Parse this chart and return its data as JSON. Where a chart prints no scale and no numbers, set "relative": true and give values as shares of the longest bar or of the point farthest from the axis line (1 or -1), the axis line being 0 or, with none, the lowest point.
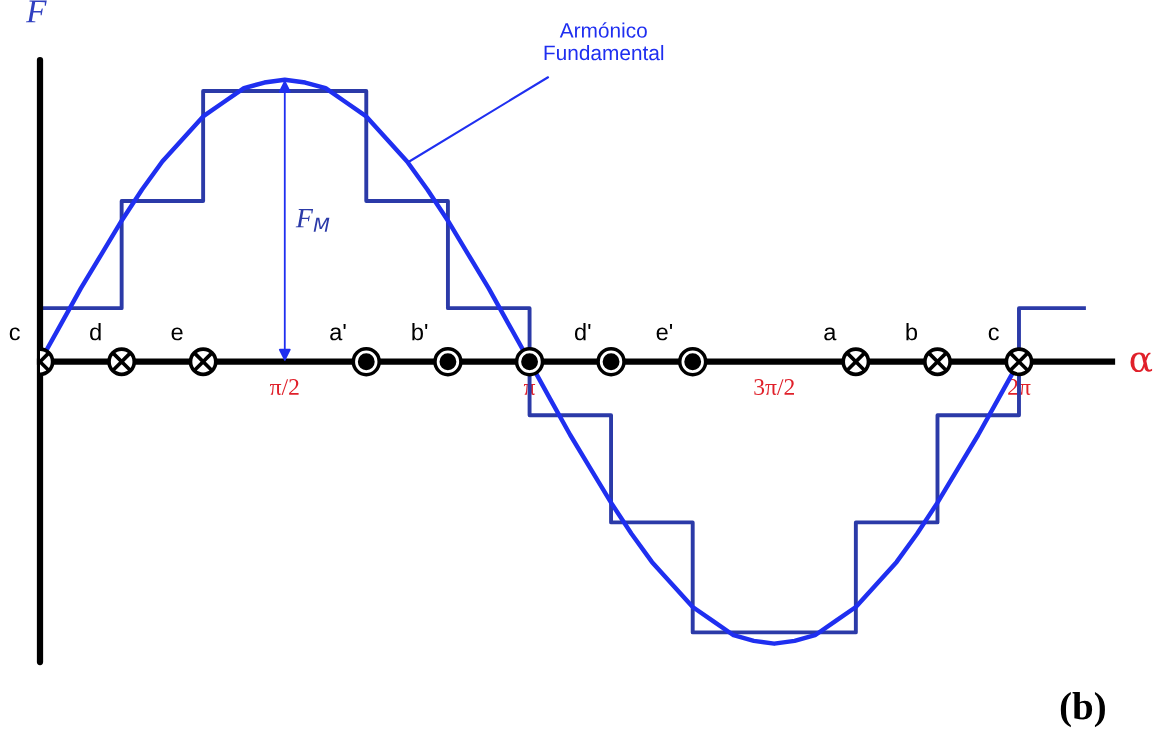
{
  "chart_data": {
    "type": "line",
    "relative": true,
    "ylabel": "F",
    "xlabel": "α",
    "xlim": [
      0,
      6.88
    ],
    "xticks": [
      {
        "value": 1.5708,
        "label": "π/2"
      },
      {
        "value": 3.1416,
        "label": "π"
      },
      {
        "value": 4.7124,
        "label": "3π/2"
      },
      {
        "value": 6.2832,
        "label": "2π"
      }
    ],
    "grid": false,
    "series": [
      {
        "type": "step",
        "color": "#2b3aa8",
        "x": [
          0,
          0.524,
          1.047,
          2.094,
          2.618,
          3.142,
          3.665,
          4.189,
          5.236,
          5.76,
          6.283,
          6.7
        ],
        "values": [
          0.19,
          0.57,
          0.96,
          0.57,
          0.19,
          -0.19,
          -0.57,
          -0.96,
          -0.57,
          -0.19,
          0.19,
          0.19
        ]
      },
      {
        "color": "#1f2ff0",
        "x": [
          0,
          0.131,
          0.262,
          0.393,
          0.524,
          0.654,
          0.785,
          0.916,
          1.047,
          1.178,
          1.309,
          1.44,
          1.571,
          1.702,
          1.833,
          1.963,
          2.094,
          2.225,
          2.356,
          2.487,
          2.618,
          2.749,
          2.88,
          3.011,
          3.142,
          3.272,
          3.403,
          3.534,
          3.665,
          3.796,
          3.927,
          4.058,
          4.189,
          4.32,
          4.451,
          4.581,
          4.712,
          4.843,
          4.974,
          5.105,
          5.236,
          5.367,
          5.498,
          5.629,
          5.76,
          5.89,
          6.021,
          6.152,
          6.283
        ],
        "values": [
          0,
          0.13,
          0.26,
          0.38,
          0.5,
          0.61,
          0.71,
          0.79,
          0.87,
          0.92,
          0.97,
          0.99,
          1,
          0.99,
          0.97,
          0.92,
          0.87,
          0.79,
          0.71,
          0.61,
          0.5,
          0.38,
          0.26,
          0.13,
          0,
          -0.13,
          -0.26,
          -0.38,
          -0.5,
          -0.61,
          -0.71,
          -0.79,
          -0.87,
          -0.92,
          -0.97,
          -0.99,
          -1,
          -0.99,
          -0.97,
          -0.92,
          -0.87,
          -0.79,
          -0.71,
          -0.61,
          -0.5,
          -0.38,
          -0.26,
          -0.13,
          0
        ]
      },
      {
        "type": "scatter",
        "marker": "cross",
        "color": "#000000",
        "x": [
          0,
          0.524,
          1.047,
          5.236,
          5.76,
          6.283
        ],
        "values": [
          0,
          0,
          0,
          0,
          0,
          0
        ]
      },
      {
        "type": "scatter",
        "marker": "circle",
        "color": "#000000",
        "x": [
          2.094,
          2.618,
          3.142,
          3.665,
          4.189
        ],
        "values": [
          0,
          0,
          0,
          0,
          0
        ]
      }
    ],
    "annotations": [
      {
        "text": "c",
        "x": 0,
        "y": 0
      },
      {
        "text": "d",
        "x": 0.524,
        "y": 0
      },
      {
        "text": "e",
        "x": 1.047,
        "y": 0
      },
      {
        "text": "a'",
        "x": 2.094,
        "y": 0
      },
      {
        "text": "b'",
        "x": 2.618,
        "y": 0
      },
      {
        "text": "d'",
        "x": 3.665,
        "y": 0
      },
      {
        "text": "e'",
        "x": 4.189,
        "y": 0
      },
      {
        "text": "a",
        "x": 5.236,
        "y": 0
      },
      {
        "text": "b",
        "x": 5.76,
        "y": 0
      },
      {
        "text": "c",
        "x": 6.283,
        "y": 0
      },
      "F$_{M}$",
      {
        "text": "Armónico\nFundamental",
        "x": 2.37,
        "y": 0.71
      },
      "(b)"
    ]
  }
}
